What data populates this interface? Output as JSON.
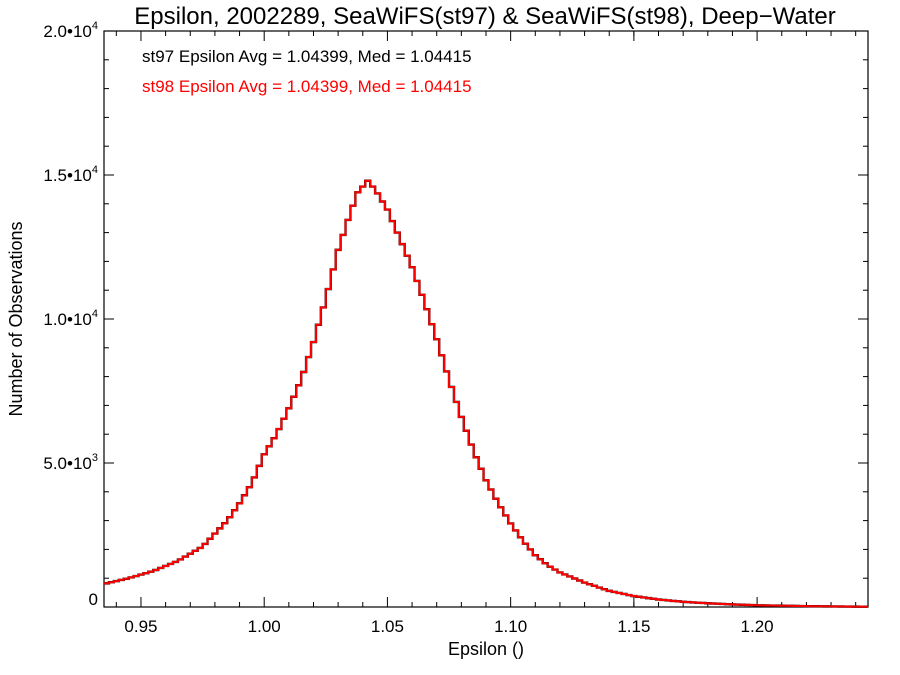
{
  "chart_data": {
    "type": "line",
    "style": "step-histogram",
    "title": "Epsilon, 2002289, SeaWiFS(st97) & SeaWiFS(st98), Deep−Water",
    "xlabel": "Epsilon ()",
    "ylabel": "Number of Observations",
    "xlim": [
      0.935,
      1.245
    ],
    "ylim": [
      0,
      20000
    ],
    "grid": false,
    "x_ticks": [
      0.95,
      1.0,
      1.05,
      1.1,
      1.15,
      1.2
    ],
    "x_tick_labels": [
      "0.95",
      "1.00",
      "1.05",
      "1.10",
      "1.15",
      "1.20"
    ],
    "y_ticks": [
      {
        "value": 0,
        "mantissa": "0",
        "exponent": ""
      },
      {
        "value": 5000,
        "mantissa": "5.0•10",
        "exponent": "3"
      },
      {
        "value": 10000,
        "mantissa": "1.0•10",
        "exponent": "4"
      },
      {
        "value": 15000,
        "mantissa": "1.5•10",
        "exponent": "4"
      },
      {
        "value": 20000,
        "mantissa": "2.0•10",
        "exponent": "4"
      }
    ],
    "annotations": [
      {
        "text": "st97 Epsilon Avg = 1.04399, Med = 1.04415",
        "color": "#000000"
      },
      {
        "text": "st98 Epsilon Avg = 1.04399, Med = 1.04415",
        "color": "#ff0000"
      }
    ],
    "series": [
      {
        "name": "st97",
        "color": "#000000",
        "x": [
          0.935,
          0.945,
          0.955,
          0.965,
          0.975,
          0.985,
          0.99,
          0.995,
          1.0,
          1.005,
          1.01,
          1.015,
          1.02,
          1.025,
          1.03,
          1.035,
          1.038,
          1.042,
          1.045,
          1.05,
          1.055,
          1.06,
          1.065,
          1.07,
          1.075,
          1.08,
          1.085,
          1.09,
          1.095,
          1.1,
          1.105,
          1.11,
          1.115,
          1.12,
          1.13,
          1.14,
          1.15,
          1.16,
          1.17,
          1.18,
          1.19,
          1.2,
          1.21,
          1.22,
          1.23,
          1.245
        ],
        "y": [
          800,
          1000,
          1250,
          1600,
          2100,
          3000,
          3600,
          4300,
          5300,
          6000,
          6900,
          7900,
          9200,
          10700,
          12400,
          13700,
          14400,
          14800,
          14500,
          13800,
          12800,
          11800,
          10600,
          9300,
          7900,
          6600,
          5400,
          4400,
          3600,
          2900,
          2300,
          1800,
          1450,
          1200,
          850,
          560,
          380,
          260,
          180,
          130,
          90,
          60,
          45,
          30,
          20,
          10
        ]
      },
      {
        "name": "st98",
        "color": "#ff0000",
        "x": [
          0.935,
          0.945,
          0.955,
          0.965,
          0.975,
          0.985,
          0.99,
          0.995,
          1.0,
          1.005,
          1.01,
          1.015,
          1.02,
          1.025,
          1.03,
          1.035,
          1.038,
          1.042,
          1.045,
          1.05,
          1.055,
          1.06,
          1.065,
          1.07,
          1.075,
          1.08,
          1.085,
          1.09,
          1.095,
          1.1,
          1.105,
          1.11,
          1.115,
          1.12,
          1.13,
          1.14,
          1.15,
          1.16,
          1.17,
          1.18,
          1.19,
          1.2,
          1.21,
          1.22,
          1.23,
          1.245
        ],
        "y": [
          800,
          1000,
          1250,
          1600,
          2100,
          3000,
          3600,
          4300,
          5300,
          6000,
          6900,
          7900,
          9200,
          10700,
          12400,
          13700,
          14400,
          14800,
          14500,
          13800,
          12800,
          11800,
          10600,
          9300,
          7900,
          6600,
          5400,
          4400,
          3600,
          2900,
          2300,
          1800,
          1450,
          1200,
          850,
          560,
          380,
          260,
          180,
          130,
          90,
          60,
          45,
          30,
          20,
          10
        ]
      }
    ]
  }
}
